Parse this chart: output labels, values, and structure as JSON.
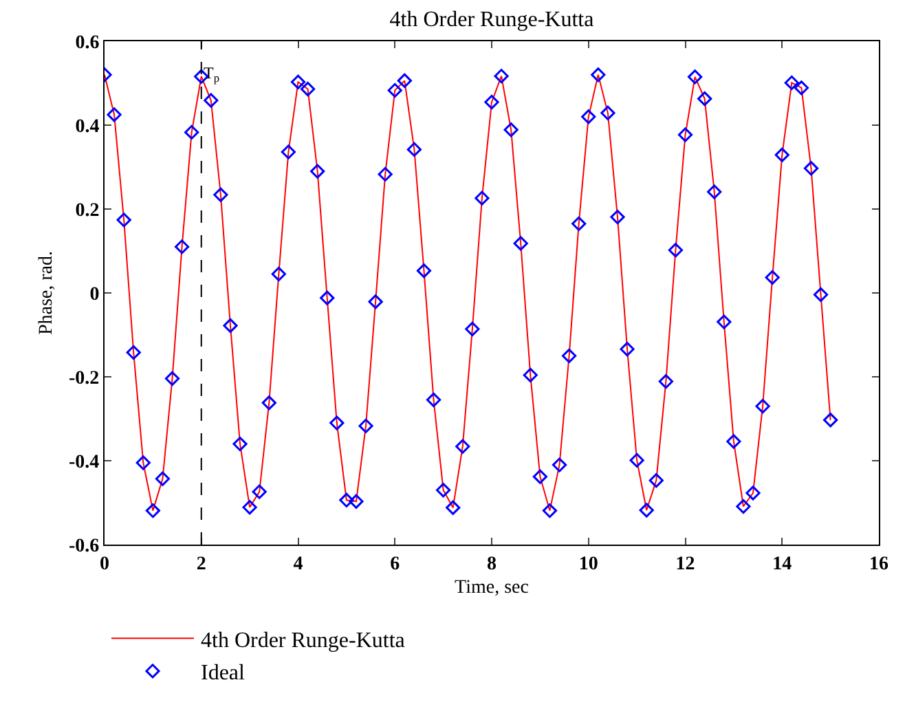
{
  "chart_data": {
    "type": "line",
    "title": "4th Order Runge-Kutta",
    "xlabel": "Time, sec",
    "ylabel": "Phase, rad.",
    "x": [
      0,
      0.2,
      0.4,
      0.6,
      0.8,
      1.0,
      1.2,
      1.4,
      1.6,
      1.8,
      2.0,
      2.2,
      2.4,
      2.6,
      2.8,
      3.0,
      3.2,
      3.4,
      3.6,
      3.8,
      4.0,
      4.2,
      4.4,
      4.6,
      4.8,
      5.0,
      5.2,
      5.4,
      5.6,
      5.8,
      6.0,
      6.2,
      6.4,
      6.6,
      6.8,
      7.0,
      7.2,
      7.4,
      7.6,
      7.8,
      8.0,
      8.2,
      8.4,
      8.6,
      8.8,
      9.0,
      9.2,
      9.4,
      9.6,
      9.8,
      10.0,
      10.2,
      10.4,
      10.6,
      10.8,
      11.0,
      11.2,
      11.4,
      11.6,
      11.8,
      12.0,
      12.2,
      12.4,
      12.6,
      12.8,
      13.0,
      13.2,
      13.4,
      13.6,
      13.8,
      14.0,
      14.2,
      14.4,
      14.6,
      14.8,
      15.0
    ],
    "series": [
      {
        "name": "4th Order Runge-Kutta",
        "color": "#ff0000",
        "marker": "none",
        "line_style": "solid",
        "values": [
          0.52,
          0.425,
          0.174,
          -0.142,
          -0.405,
          -0.519,
          -0.443,
          -0.204,
          0.11,
          0.383,
          0.516,
          0.459,
          0.234,
          -0.078,
          -0.36,
          -0.511,
          -0.474,
          -0.262,
          0.045,
          0.336,
          0.503,
          0.486,
          0.29,
          -0.012,
          -0.31,
          -0.494,
          -0.497,
          -0.317,
          -0.021,
          0.283,
          0.483,
          0.506,
          0.342,
          0.053,
          -0.255,
          -0.47,
          -0.512,
          -0.366,
          -0.086,
          0.226,
          0.455,
          0.517,
          0.389,
          0.118,
          -0.196,
          -0.438,
          -0.519,
          -0.41,
          -0.15,
          0.165,
          0.42,
          0.52,
          0.429,
          0.181,
          -0.134,
          -0.399,
          -0.518,
          -0.447,
          -0.211,
          0.102,
          0.377,
          0.515,
          0.463,
          0.241,
          -0.069,
          -0.354,
          -0.509,
          -0.477,
          -0.27,
          0.037,
          0.329,
          0.501,
          0.489,
          0.297,
          -0.004,
          -0.303
        ]
      },
      {
        "name": "Ideal",
        "type": "scatter",
        "color": "#0000ff",
        "marker": "diamond",
        "values": [
          0.52,
          0.425,
          0.174,
          -0.142,
          -0.405,
          -0.519,
          -0.443,
          -0.204,
          0.11,
          0.383,
          0.516,
          0.459,
          0.234,
          -0.078,
          -0.36,
          -0.511,
          -0.474,
          -0.262,
          0.045,
          0.336,
          0.503,
          0.486,
          0.29,
          -0.012,
          -0.31,
          -0.494,
          -0.497,
          -0.317,
          -0.021,
          0.283,
          0.483,
          0.506,
          0.342,
          0.053,
          -0.255,
          -0.47,
          -0.512,
          -0.366,
          -0.086,
          0.226,
          0.455,
          0.517,
          0.389,
          0.118,
          -0.196,
          -0.438,
          -0.519,
          -0.41,
          -0.15,
          0.165,
          0.42,
          0.52,
          0.429,
          0.181,
          -0.134,
          -0.399,
          -0.518,
          -0.447,
          -0.211,
          0.102,
          0.377,
          0.515,
          0.463,
          0.241,
          -0.069,
          -0.354,
          -0.509,
          -0.477,
          -0.27,
          0.037,
          0.329,
          0.501,
          0.489,
          0.297,
          -0.004,
          -0.303
        ]
      }
    ],
    "xlim": [
      0,
      16
    ],
    "xticks": [
      0,
      2,
      4,
      6,
      8,
      10,
      12,
      14,
      16
    ],
    "ylim": [
      -0.6,
      0.6
    ],
    "yticks": [
      -0.6,
      -0.4,
      -0.2,
      0,
      0.2,
      0.4,
      0.6
    ],
    "ref_lines": [
      {
        "axis": "x",
        "value": 2,
        "label": "T$_{p}$",
        "color": "#000000",
        "line_style": "dashed"
      }
    ],
    "legend": "bottom left"
  }
}
